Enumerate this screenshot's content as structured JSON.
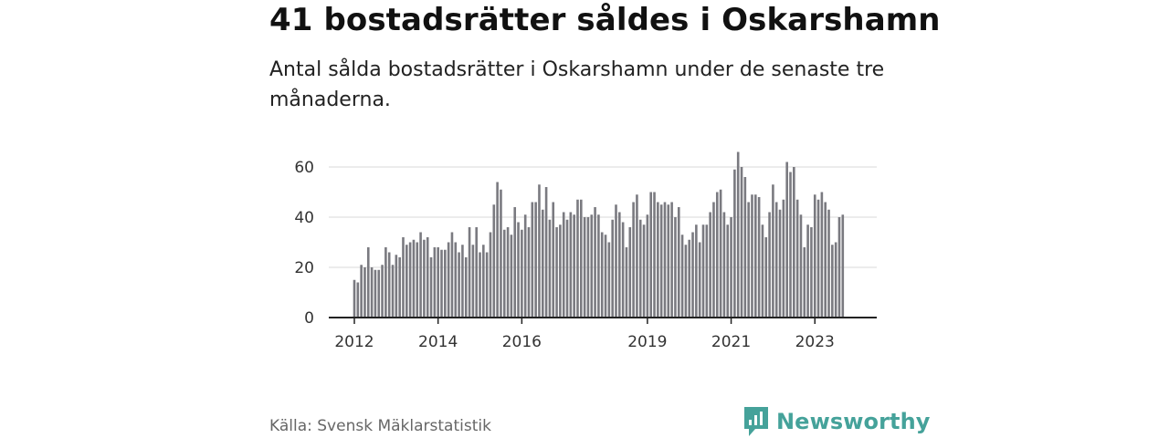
{
  "title": "41 bostadsrätter såldes i Oskarshamn",
  "subtitle": "Antal sålda bostadsrätter i Oskarshamn under de senaste tre månaderna.",
  "source": "Källa: Svensk Mäklarstatistik",
  "brand": {
    "name": "Newsworthy"
  },
  "colors": {
    "bar": "#7a7a80",
    "highlight": "#2a9d8f",
    "grid": "#d9d9d9",
    "axis": "#222222",
    "brand": "#45a29a"
  },
  "chart_data": {
    "type": "bar",
    "title": "41 bostadsrätter såldes i Oskarshamn",
    "xlabel": "",
    "ylabel": "",
    "ylim": [
      0,
      68
    ],
    "yticks": [
      0,
      20,
      40,
      60
    ],
    "x_tick_labels": [
      "2012",
      "2014",
      "2016",
      "2019",
      "2021",
      "2023"
    ],
    "x_tick_months": [
      0,
      24,
      48,
      84,
      108,
      132
    ],
    "start": "2012-01",
    "values": [
      15,
      14,
      21,
      20,
      28,
      20,
      19,
      19,
      21,
      28,
      26,
      21,
      25,
      24,
      32,
      29,
      30,
      31,
      30,
      34,
      31,
      32,
      24,
      28,
      28,
      27,
      27,
      30,
      34,
      30,
      26,
      29,
      24,
      36,
      29,
      36,
      26,
      29,
      26,
      34,
      45,
      54,
      51,
      35,
      36,
      33,
      44,
      38,
      35,
      41,
      36,
      46,
      46,
      53,
      43,
      52,
      39,
      46,
      36,
      37,
      42,
      39,
      42,
      41,
      47,
      47,
      40,
      40,
      41,
      44,
      41,
      34,
      33,
      30,
      39,
      45,
      42,
      38,
      28,
      36,
      46,
      49,
      39,
      37,
      41,
      50,
      50,
      46,
      45,
      46,
      45,
      46,
      40,
      44,
      33,
      29,
      31,
      34,
      37,
      30,
      37,
      37,
      42,
      46,
      50,
      51,
      42,
      37,
      40,
      59,
      66,
      60,
      56,
      46,
      49,
      49,
      48,
      37,
      32,
      42,
      53,
      46,
      43,
      47,
      62,
      58,
      60,
      47,
      41,
      28,
      37,
      36,
      49,
      47,
      50,
      46,
      43,
      29,
      30,
      40,
      41
    ],
    "highlight_index": 142,
    "annotation": "41"
  }
}
